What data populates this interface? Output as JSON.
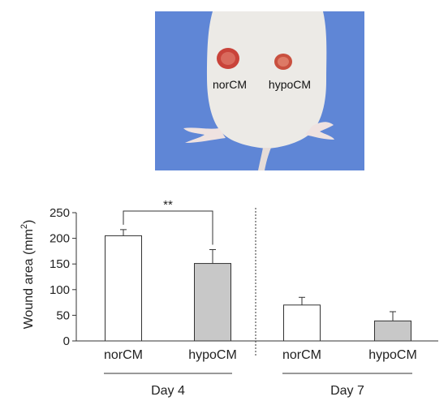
{
  "photo": {
    "labels": [
      "norCM",
      "hypoCM"
    ],
    "background_color": "#5f86d6"
  },
  "chart_data": {
    "type": "bar",
    "ylabel": "Wound area (mm",
    "ylabel_sup": "2",
    "ylabel_close": ")",
    "ylim": [
      0,
      250
    ],
    "yticks": [
      0,
      50,
      100,
      150,
      200,
      250
    ],
    "groups": [
      {
        "label": "Day 4",
        "bars": [
          {
            "category": "norCM",
            "value": 205,
            "error": 12,
            "fill": "#ffffff"
          },
          {
            "category": "hypoCM",
            "value": 151,
            "error": 27,
            "fill": "#c8c8c8"
          }
        ]
      },
      {
        "label": "Day 7",
        "bars": [
          {
            "category": "norCM",
            "value": 70,
            "error": 15,
            "fill": "#ffffff"
          },
          {
            "category": "hypoCM",
            "value": 39,
            "error": 18,
            "fill": "#c8c8c8"
          }
        ]
      }
    ],
    "significance": {
      "group": 0,
      "from": 0,
      "to": 1,
      "label": "**"
    }
  }
}
